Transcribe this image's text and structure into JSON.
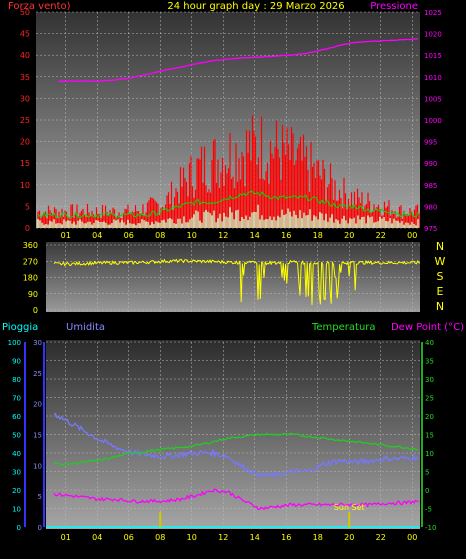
{
  "header": {
    "left_label": "Forza vento)",
    "title": "24 hour graph day : 29 Marzo 2026",
    "right_label": "Pressione"
  },
  "colors": {
    "wind": "#ff0000",
    "wind_avg": "#00dd00",
    "wind_low": "#ccffcc",
    "pressure": "#ff00ff",
    "direction": "#ffff00",
    "humidity": "#7777ff",
    "temperature": "#22cc22",
    "dewpoint": "#ff00ff",
    "rain": "#00ffff",
    "grid": "#bbbbbb"
  },
  "compass": [
    "N",
    "W",
    "S",
    "E",
    "N"
  ],
  "bottom_header": {
    "rain_label": "Pioggia",
    "hum_label": "Umidita",
    "temp_label": "Temperatura",
    "dew_label": "Dew Point (°C)"
  },
  "sunset_label": "Sun Set",
  "chart_data": [
    {
      "type": "line",
      "id": "wind_pressure",
      "x_ticks": [
        "01",
        "04",
        "06",
        "08",
        "10",
        "12",
        "14",
        "16",
        "18",
        "20",
        "22",
        "00"
      ],
      "left_axis": {
        "ticks": [
          0,
          5,
          10,
          15,
          20,
          25,
          30,
          35,
          40,
          45,
          50
        ],
        "ylim": [
          0,
          50
        ]
      },
      "right_axis": {
        "ticks": [
          975,
          980,
          985,
          990,
          995,
          1000,
          1005,
          1010,
          1015,
          1020,
          1025
        ],
        "ylim": [
          975,
          1025
        ]
      },
      "series": [
        {
          "name": "Forza vento)",
          "kind": "wind_gust",
          "x": [
            0,
            1,
            2,
            3,
            4,
            5,
            6,
            7,
            8,
            9,
            10,
            11,
            12,
            13,
            14,
            15,
            16,
            17,
            18,
            19,
            20,
            21,
            22,
            23,
            24
          ],
          "values": [
            4,
            4,
            4,
            4,
            4,
            4,
            4,
            5,
            6,
            10,
            14,
            16,
            18,
            19,
            20,
            19,
            17,
            15,
            12,
            9,
            7,
            6,
            5,
            4,
            4
          ]
        },
        {
          "name": "",
          "kind": "wind_avg",
          "x": [
            0,
            1,
            2,
            3,
            4,
            5,
            6,
            7,
            8,
            9,
            10,
            11,
            12,
            13,
            14,
            15,
            16,
            17,
            18,
            19,
            20,
            21,
            22,
            23,
            24
          ],
          "values": [
            3,
            3,
            3,
            3,
            3,
            3,
            3,
            3,
            4,
            5,
            6,
            6,
            7,
            8,
            8,
            7,
            7,
            7,
            6,
            5,
            5,
            4,
            4,
            3,
            3
          ]
        },
        {
          "name": "Pressione",
          "kind": "pressure",
          "x": [
            0,
            1,
            2,
            3,
            4,
            5,
            6,
            7,
            8,
            9,
            10,
            11,
            12,
            13,
            14,
            15,
            16,
            17,
            18,
            19,
            20,
            21,
            22,
            23,
            24
          ],
          "values": [
            1009,
            1009,
            1009,
            1009,
            1009,
            1009.3,
            1009.8,
            1010.6,
            1011.5,
            1012.2,
            1013,
            1013.7,
            1014.1,
            1014.4,
            1014.6,
            1014.8,
            1015,
            1015.5,
            1016.3,
            1017.3,
            1018,
            1018.2,
            1018.4,
            1018.6,
            1018.8
          ]
        }
      ]
    },
    {
      "type": "line",
      "id": "wind_direction",
      "x_ticks": [
        "01",
        "04",
        "06",
        "08",
        "10",
        "12",
        "14",
        "16",
        "18",
        "20",
        "22",
        "00"
      ],
      "left_axis": {
        "ticks": [
          0,
          90,
          180,
          270,
          360
        ],
        "ylim": [
          0,
          360
        ]
      },
      "series": [
        {
          "name": "",
          "kind": "direction",
          "x": [
            0,
            1,
            2,
            3,
            4,
            5,
            6,
            7,
            8,
            9,
            10,
            11,
            12,
            13,
            14,
            15,
            16,
            17,
            18,
            19,
            20,
            21,
            22,
            23,
            24
          ],
          "values": [
            255,
            255,
            255,
            258,
            260,
            262,
            262,
            265,
            270,
            272,
            270,
            268,
            265,
            262,
            260,
            262,
            265,
            262,
            258,
            260,
            262,
            262,
            262,
            262,
            262
          ]
        }
      ]
    },
    {
      "type": "line",
      "id": "temp_hum_dew",
      "x_ticks": [
        "01",
        "04",
        "06",
        "08",
        "10",
        "12",
        "14",
        "16",
        "18",
        "20",
        "22",
        "00"
      ],
      "rain_axis": {
        "ticks": [
          0,
          10,
          20,
          30,
          40,
          50,
          60,
          70,
          80,
          90,
          100
        ],
        "ylim": [
          0,
          100
        ]
      },
      "hum_axis": {
        "ticks": [
          0,
          5,
          10,
          15,
          20,
          25,
          30
        ],
        "ylim": [
          0,
          30
        ]
      },
      "temp_axis": {
        "ticks": [
          -10,
          -5,
          0,
          5,
          10,
          15,
          20,
          25,
          30,
          35,
          40
        ],
        "ylim": [
          -10,
          40
        ]
      },
      "series": [
        {
          "name": "Umidita",
          "kind": "humidity",
          "x": [
            0,
            1,
            2,
            3,
            4,
            5,
            6,
            7,
            8,
            9,
            10,
            11,
            12,
            13,
            14,
            15,
            16,
            17,
            18,
            19,
            20,
            21,
            22,
            23,
            24
          ],
          "values": [
            65,
            62,
            57,
            52,
            47,
            43,
            40,
            39,
            38,
            39,
            40,
            40,
            38,
            32,
            28,
            28,
            30,
            30,
            34,
            36,
            35,
            36,
            37,
            37,
            38
          ]
        },
        {
          "name": "Temperatura",
          "kind": "temperature",
          "x": [
            0,
            1,
            2,
            3,
            4,
            5,
            6,
            7,
            8,
            9,
            10,
            11,
            12,
            13,
            14,
            15,
            16,
            17,
            18,
            19,
            20,
            21,
            22,
            23,
            24
          ],
          "values": [
            7,
            7,
            7,
            7.5,
            8,
            9,
            10,
            10.5,
            11,
            11.5,
            12,
            13,
            14,
            14.5,
            15,
            15,
            15,
            14.5,
            14,
            13.5,
            13,
            12.5,
            12,
            11.5,
            11
          ]
        },
        {
          "name": "Dew Point (°C)",
          "kind": "dewpoint",
          "x": [
            0,
            1,
            2,
            3,
            4,
            5,
            6,
            7,
            8,
            9,
            10,
            11,
            12,
            13,
            14,
            15,
            16,
            17,
            18,
            19,
            20,
            21,
            22,
            23,
            24
          ],
          "values": [
            0,
            -1,
            -1.5,
            -2,
            -2.5,
            -2.5,
            -3,
            -3,
            -3,
            -2.5,
            -1.5,
            0,
            -0.5,
            -3,
            -5,
            -4.5,
            -4,
            -4,
            -4,
            -4,
            -4,
            -4,
            -3.5,
            -3.5,
            -3
          ]
        },
        {
          "name": "",
          "kind": "rain",
          "x": [
            0,
            24
          ],
          "values": [
            0,
            0
          ]
        }
      ]
    }
  ]
}
